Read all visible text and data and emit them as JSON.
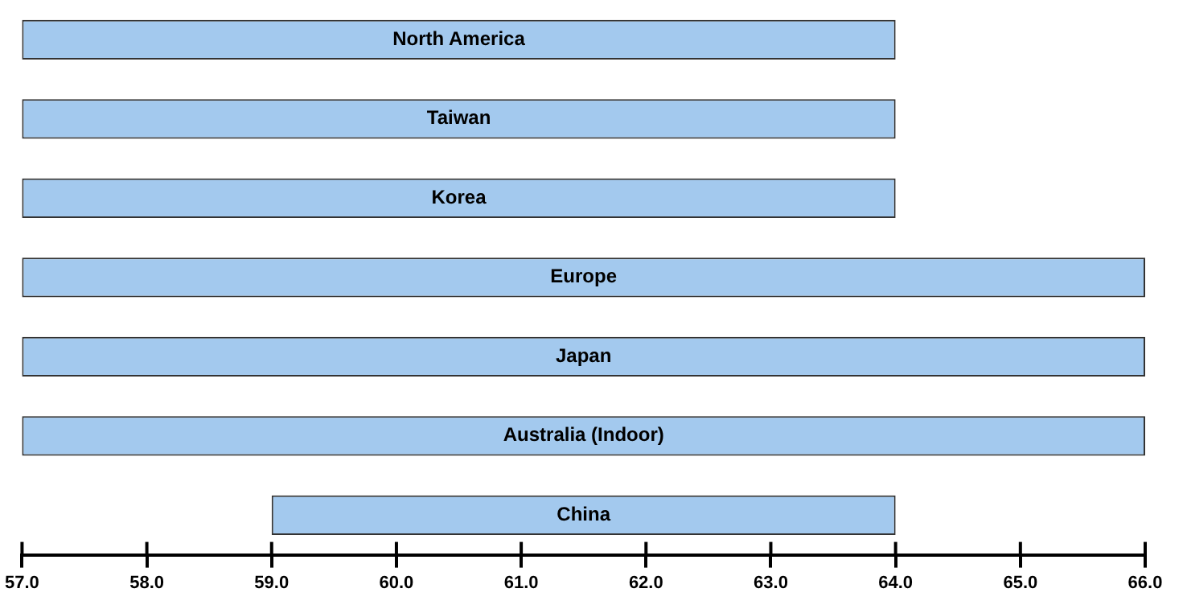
{
  "chart_data": {
    "type": "bar",
    "orientation": "horizontal",
    "categories": [
      "North America",
      "Taiwan",
      "Korea",
      "Europe",
      "Japan",
      "Australia (Indoor)",
      "China"
    ],
    "base": [
      57,
      57,
      57,
      57,
      57,
      57,
      59
    ],
    "values": [
      7,
      7,
      7,
      9,
      9,
      9,
      5
    ],
    "color": "#a3c9ee",
    "xlim": [
      57,
      66
    ],
    "xticks": [
      {
        "value": 57,
        "label": "57.0"
      },
      {
        "value": 58,
        "label": "58.0"
      },
      {
        "value": 59,
        "label": "59.0"
      },
      {
        "value": 60,
        "label": "60.0"
      },
      {
        "value": 61,
        "label": "61.0"
      },
      {
        "value": 62,
        "label": "62.0"
      },
      {
        "value": 63,
        "label": "63.0"
      },
      {
        "value": 64,
        "label": "64.0"
      },
      {
        "value": 65,
        "label": "65.0"
      },
      {
        "value": 66,
        "label": "66.0"
      }
    ],
    "tick_labels": "x",
    "grid": false,
    "legend": false
  }
}
